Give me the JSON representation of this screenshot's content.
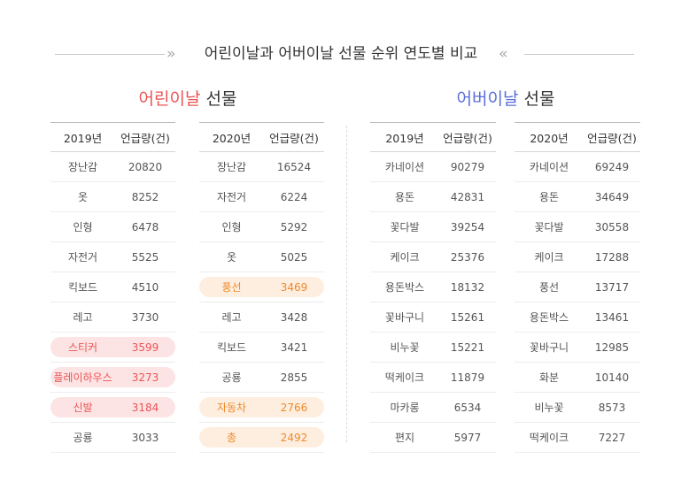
{
  "title": "어린이날과 어버이날 선물 순위 연도별 비교",
  "decor": {
    "left": "»",
    "right": "«"
  },
  "sections": [
    {
      "accent": "어린이날",
      "rest": " 선물",
      "accent_color": "#ea5455",
      "tables": [
        {
          "year": "2019년",
          "col": "언급량(건)",
          "rows": [
            {
              "name": "장난감",
              "value": "20820",
              "hl": ""
            },
            {
              "name": "옷",
              "value": "8252",
              "hl": ""
            },
            {
              "name": "인형",
              "value": "6478",
              "hl": ""
            },
            {
              "name": "자전거",
              "value": "5525",
              "hl": ""
            },
            {
              "name": "킥보드",
              "value": "4510",
              "hl": ""
            },
            {
              "name": "레고",
              "value": "3730",
              "hl": ""
            },
            {
              "name": "스티커",
              "value": "3599",
              "hl": "pink"
            },
            {
              "name": "플레이하우스",
              "value": "3273",
              "hl": "pink"
            },
            {
              "name": "신발",
              "value": "3184",
              "hl": "pink"
            },
            {
              "name": "공룡",
              "value": "3033",
              "hl": ""
            }
          ]
        },
        {
          "year": "2020년",
          "col": "언급량(건)",
          "rows": [
            {
              "name": "장난감",
              "value": "16524",
              "hl": ""
            },
            {
              "name": "자전거",
              "value": "6224",
              "hl": ""
            },
            {
              "name": "인형",
              "value": "5292",
              "hl": ""
            },
            {
              "name": "옷",
              "value": "5025",
              "hl": ""
            },
            {
              "name": "풍선",
              "value": "3469",
              "hl": "orange"
            },
            {
              "name": "레고",
              "value": "3428",
              "hl": ""
            },
            {
              "name": "킥보드",
              "value": "3421",
              "hl": ""
            },
            {
              "name": "공룡",
              "value": "2855",
              "hl": ""
            },
            {
              "name": "자동차",
              "value": "2766",
              "hl": "orange"
            },
            {
              "name": "총",
              "value": "2492",
              "hl": "orange"
            }
          ]
        }
      ]
    },
    {
      "accent": "어버이날",
      "rest": " 선물",
      "accent_color": "#5b6fd6",
      "tables": [
        {
          "year": "2019년",
          "col": "언급량(건)",
          "rows": [
            {
              "name": "카네이션",
              "value": "90279",
              "hl": ""
            },
            {
              "name": "용돈",
              "value": "42831",
              "hl": ""
            },
            {
              "name": "꽃다발",
              "value": "39254",
              "hl": ""
            },
            {
              "name": "케이크",
              "value": "25376",
              "hl": ""
            },
            {
              "name": "용돈박스",
              "value": "18132",
              "hl": ""
            },
            {
              "name": "꽃바구니",
              "value": "15261",
              "hl": ""
            },
            {
              "name": "비누꽃",
              "value": "15221",
              "hl": ""
            },
            {
              "name": "떡케이크",
              "value": "11879",
              "hl": ""
            },
            {
              "name": "마카롱",
              "value": "6534",
              "hl": ""
            },
            {
              "name": "편지",
              "value": "5977",
              "hl": ""
            }
          ]
        },
        {
          "year": "2020년",
          "col": "언급량(건)",
          "rows": [
            {
              "name": "카네이션",
              "value": "69249",
              "hl": ""
            },
            {
              "name": "용돈",
              "value": "34649",
              "hl": ""
            },
            {
              "name": "꽃다발",
              "value": "30558",
              "hl": ""
            },
            {
              "name": "케이크",
              "value": "17288",
              "hl": ""
            },
            {
              "name": "풍선",
              "value": "13717",
              "hl": ""
            },
            {
              "name": "용돈박스",
              "value": "13461",
              "hl": ""
            },
            {
              "name": "꽃바구니",
              "value": "12985",
              "hl": ""
            },
            {
              "name": "화분",
              "value": "10140",
              "hl": ""
            },
            {
              "name": "비누꽃",
              "value": "8573",
              "hl": ""
            },
            {
              "name": "떡케이크",
              "value": "7227",
              "hl": ""
            }
          ]
        }
      ]
    }
  ]
}
